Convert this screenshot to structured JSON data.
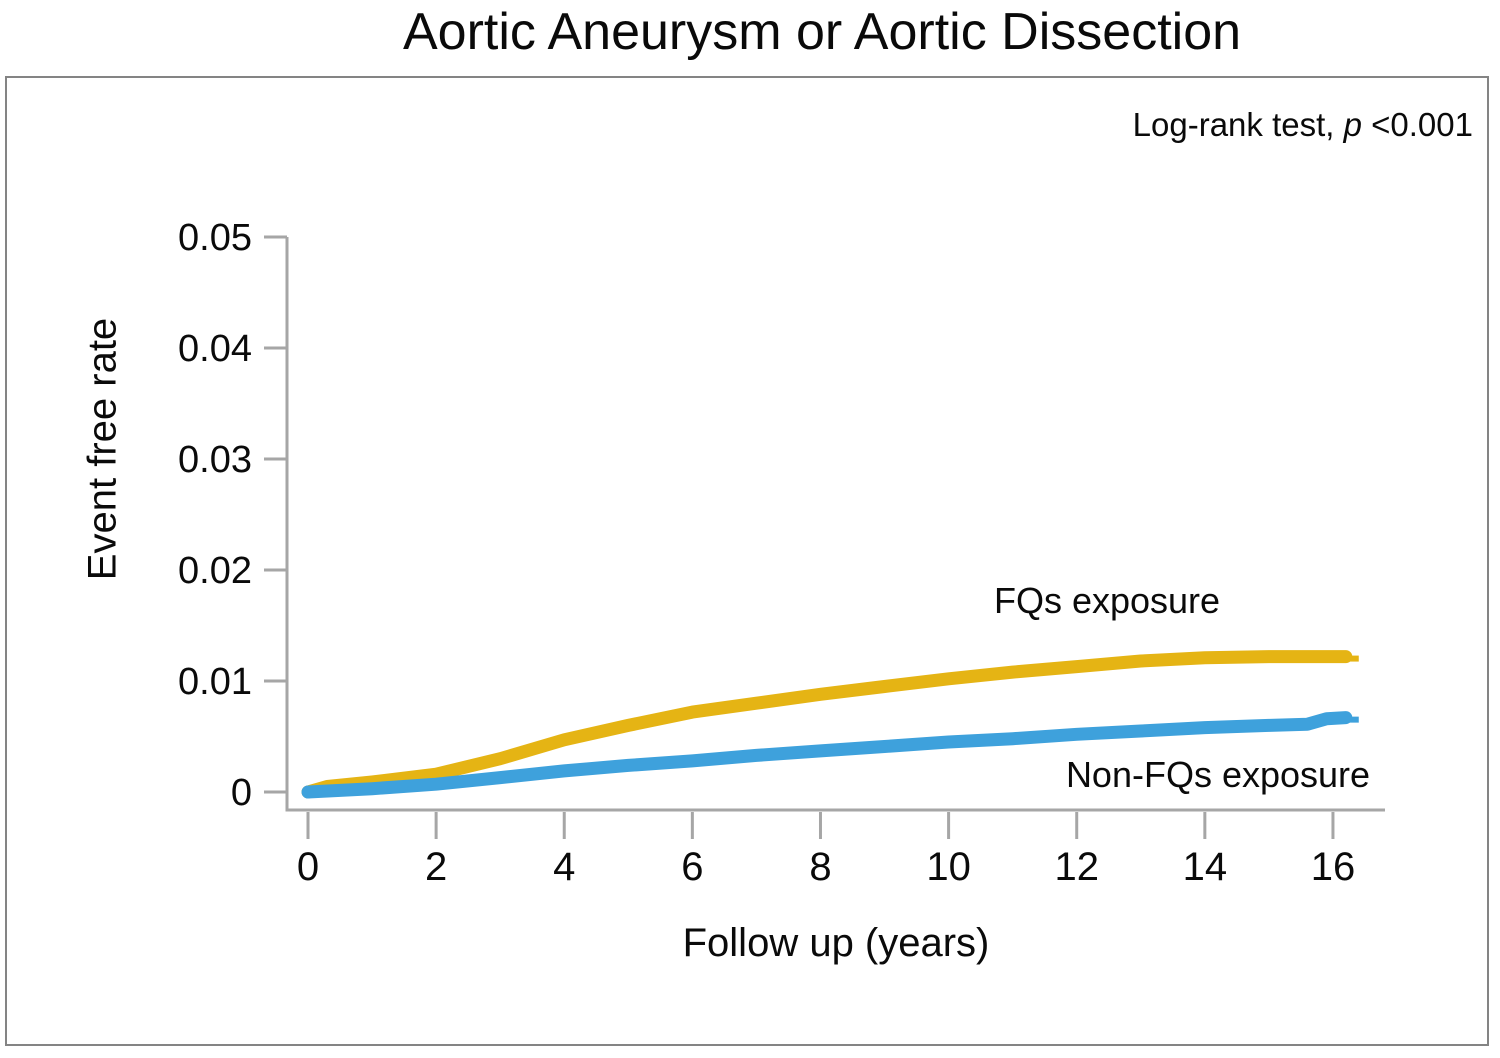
{
  "title": "Aortic Aneurysm or Aortic Dissection",
  "annotation": {
    "prefix": "Log-rank test, ",
    "p": "p",
    "suffix": " <0.001"
  },
  "colors": {
    "fqs_line": "#E5B414",
    "nonfqs_line": "#3EA1DC",
    "axis": "#A6A6A6",
    "border": "#848484",
    "text": "#0A0A0A"
  },
  "chart_data": {
    "type": "line",
    "title": "Aortic Aneurysm or Aortic Dissection",
    "subtitle": "Log-rank test, p <0.001",
    "xlabel": "Follow up (years)",
    "ylabel": "Event free rate",
    "xlim": [
      0,
      16.8
    ],
    "ylim": [
      0,
      0.05
    ],
    "grid": false,
    "legend_position": "inline-labels-next-to-curves",
    "x_ticks": [
      {
        "value": 0,
        "label": "0"
      },
      {
        "value": 2,
        "label": "2"
      },
      {
        "value": 4,
        "label": "4"
      },
      {
        "value": 6,
        "label": "6"
      },
      {
        "value": 8,
        "label": "8"
      },
      {
        "value": 10,
        "label": "10"
      },
      {
        "value": 12,
        "label": "12"
      },
      {
        "value": 14,
        "label": "14"
      },
      {
        "value": 16,
        "label": "16"
      }
    ],
    "y_ticks": [
      {
        "value": 0,
        "label": "0"
      },
      {
        "value": 0.01,
        "label": "0.01"
      },
      {
        "value": 0.02,
        "label": "0.02"
      },
      {
        "value": 0.03,
        "label": "0.03"
      },
      {
        "value": 0.04,
        "label": "0.04"
      },
      {
        "value": 0.05,
        "label": "0.05"
      }
    ],
    "series": [
      {
        "name": "FQs exposure",
        "color": "#E5B414",
        "x": [
          0,
          0.3,
          1,
          2,
          3,
          4,
          5,
          6,
          7,
          8,
          9,
          10,
          11,
          12,
          13,
          14,
          15,
          16,
          16.2
        ],
        "y": [
          0,
          0.0005,
          0.0009,
          0.0016,
          0.003,
          0.0047,
          0.006,
          0.0072,
          0.008,
          0.0088,
          0.0095,
          0.0102,
          0.0108,
          0.0113,
          0.0118,
          0.0121,
          0.0122,
          0.0122,
          0.0122
        ]
      },
      {
        "name": "Non-FQs exposure",
        "color": "#3EA1DC",
        "x": [
          0,
          1,
          2,
          3,
          4,
          5,
          6,
          7,
          8,
          9,
          10,
          11,
          12,
          13,
          14,
          15,
          15.6,
          15.9,
          16.2
        ],
        "y": [
          0,
          0.0003,
          0.0007,
          0.0013,
          0.0019,
          0.0024,
          0.0028,
          0.0033,
          0.0037,
          0.0041,
          0.0045,
          0.0048,
          0.0052,
          0.0055,
          0.0058,
          0.006,
          0.0061,
          0.0066,
          0.0067
        ]
      }
    ]
  }
}
